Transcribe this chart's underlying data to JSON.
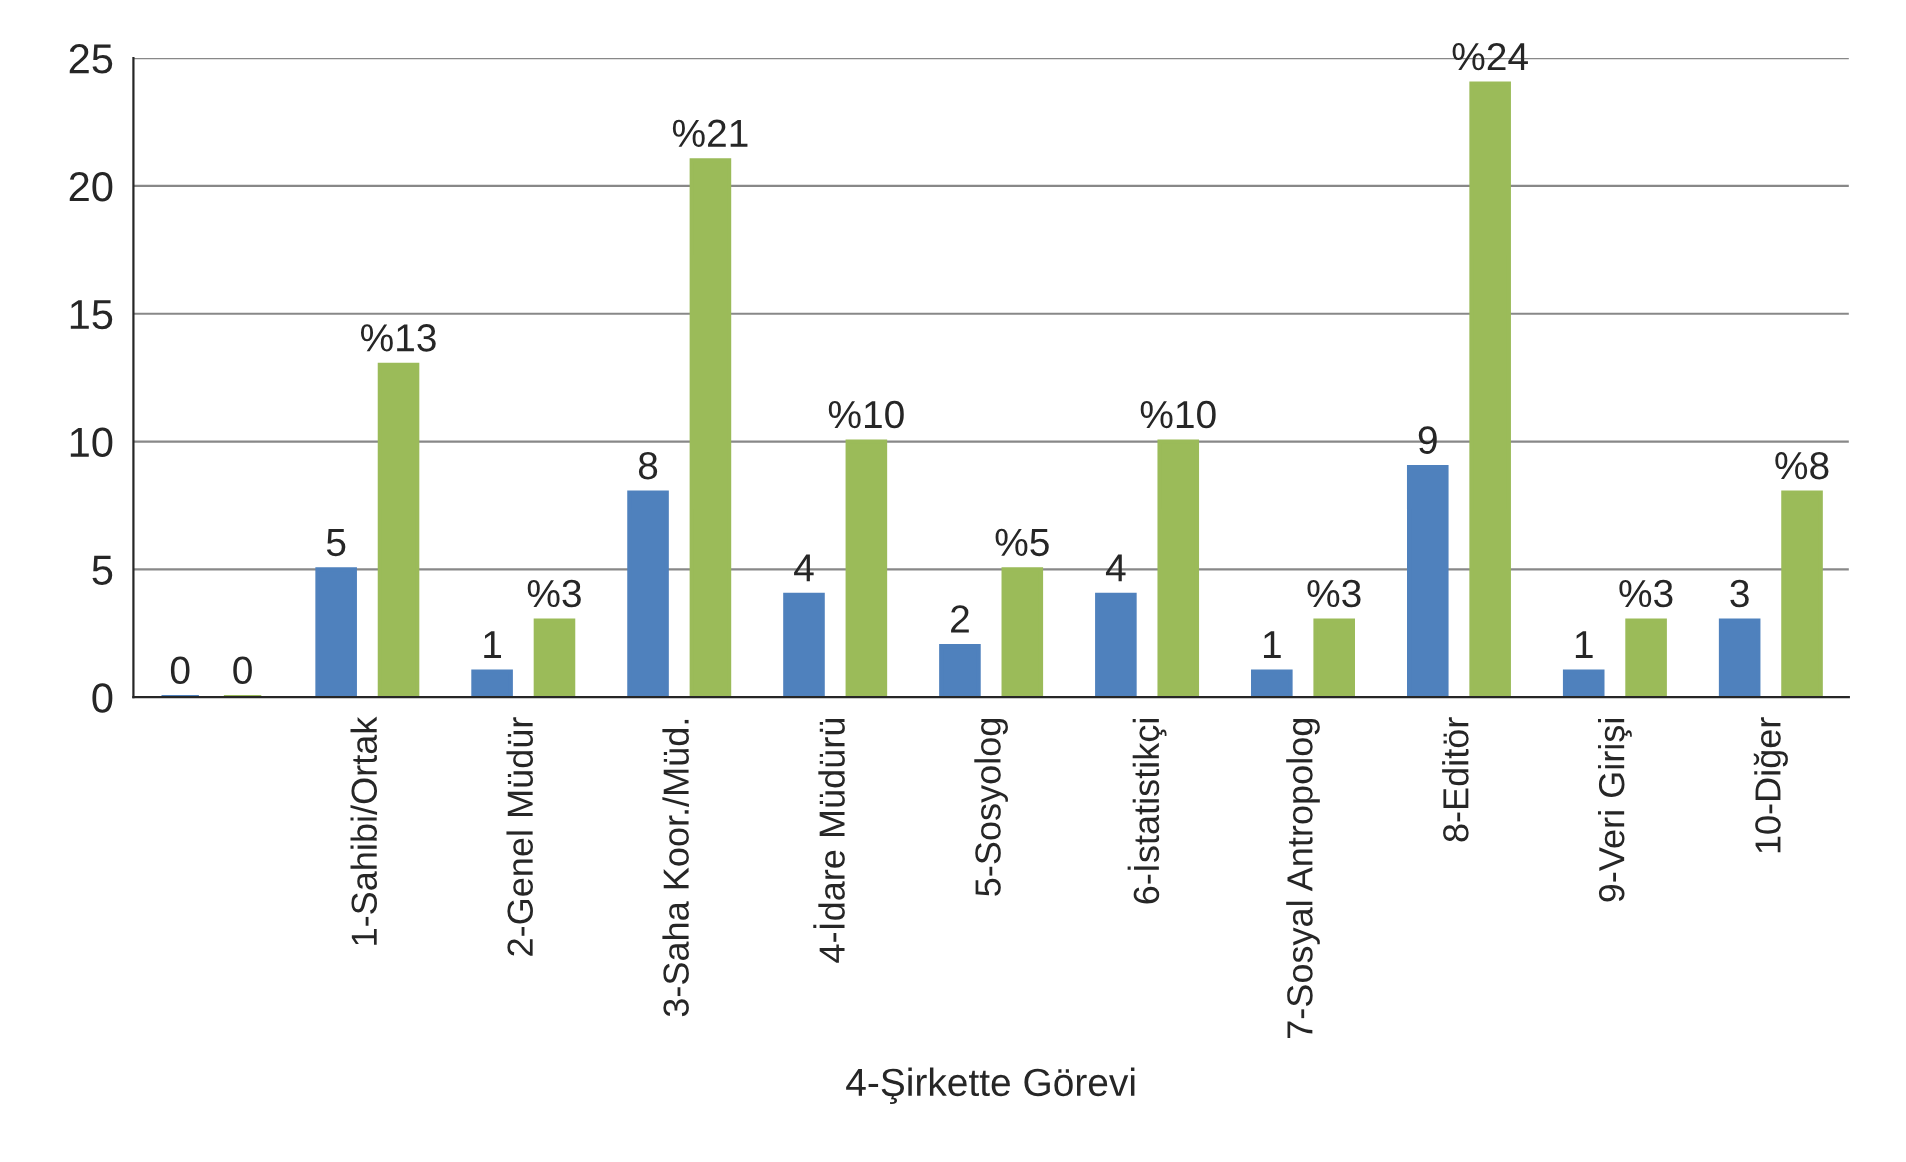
{
  "chart_data": {
    "type": "bar",
    "xlabel": "4-Şirkette Görevi",
    "categories": [
      null,
      "1-Sahibi/Ortak",
      "2-Genel Müdür",
      "3-Saha Koor./Müd.",
      "4-İdare Müdürü",
      "5-Sosyolog",
      "6-İstatistikçi",
      "7-Sosyal Antropolog",
      "8-Editör",
      "9-Veri Girişi",
      "10-Diğer"
    ],
    "series": [
      {
        "color": "#4f81bd",
        "values": [
          0,
          5,
          1,
          8,
          4,
          2,
          4,
          1,
          9,
          1,
          3
        ],
        "value_labels": [
          "0",
          "5",
          "1",
          "8",
          "4",
          "2",
          "4",
          "1",
          "9",
          "1",
          "3"
        ]
      },
      {
        "color": "#9bbb59",
        "values": [
          0,
          13,
          3,
          21,
          10,
          5,
          10,
          3,
          24,
          3,
          8
        ],
        "value_labels": [
          "0",
          "%13",
          "%3",
          "%21",
          "%10",
          "%5",
          "%10",
          "%3",
          "%24",
          "%3",
          "%8"
        ]
      }
    ],
    "ylim": [
      0,
      25
    ],
    "yticks": [
      0,
      5,
      10,
      15,
      20,
      25
    ],
    "grid": "y",
    "legend": false
  }
}
